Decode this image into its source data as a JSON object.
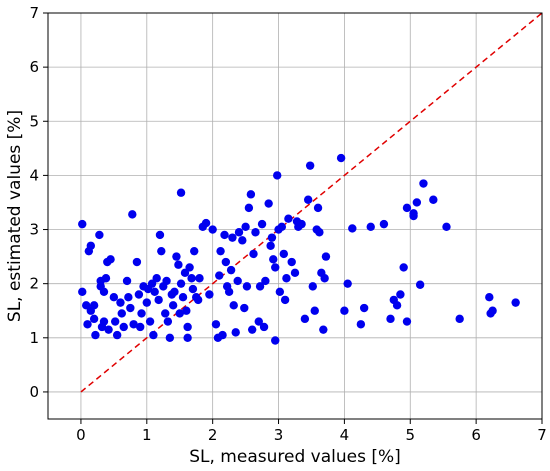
{
  "chart_data": {
    "type": "scatter",
    "title": "",
    "xlabel": "SL, measured values [%]",
    "ylabel": "SL, estimated values [%]",
    "xlim": [
      -0.5,
      7
    ],
    "ylim": [
      -0.5,
      7
    ],
    "xticks": [
      0,
      1,
      2,
      3,
      4,
      5,
      6,
      7
    ],
    "yticks": [
      0,
      1,
      2,
      3,
      4,
      5,
      6,
      7
    ],
    "grid": true,
    "reference_line": {
      "from": [
        0,
        0
      ],
      "to": [
        7,
        7
      ],
      "style": "dashed",
      "color": "#e00000"
    },
    "series": [
      {
        "color": "#0000ee",
        "points": [
          [
            0.02,
            3.1
          ],
          [
            0.02,
            1.85
          ],
          [
            0.08,
            1.6
          ],
          [
            0.1,
            1.25
          ],
          [
            0.12,
            2.6
          ],
          [
            0.15,
            2.7
          ],
          [
            0.15,
            1.5
          ],
          [
            0.2,
            1.6
          ],
          [
            0.2,
            1.35
          ],
          [
            0.22,
            1.05
          ],
          [
            0.28,
            2.9
          ],
          [
            0.3,
            1.95
          ],
          [
            0.3,
            2.05
          ],
          [
            0.32,
            1.2
          ],
          [
            0.35,
            1.85
          ],
          [
            0.35,
            1.3
          ],
          [
            0.38,
            2.1
          ],
          [
            0.4,
            2.4
          ],
          [
            0.42,
            1.15
          ],
          [
            0.45,
            2.45
          ],
          [
            0.5,
            1.75
          ],
          [
            0.52,
            1.3
          ],
          [
            0.55,
            1.05
          ],
          [
            0.6,
            1.65
          ],
          [
            0.62,
            1.45
          ],
          [
            0.65,
            1.2
          ],
          [
            0.7,
            2.05
          ],
          [
            0.72,
            1.75
          ],
          [
            0.75,
            1.55
          ],
          [
            0.78,
            3.28
          ],
          [
            0.8,
            1.25
          ],
          [
            0.85,
            2.4
          ],
          [
            0.88,
            1.8
          ],
          [
            0.9,
            1.2
          ],
          [
            0.92,
            1.45
          ],
          [
            0.95,
            1.95
          ],
          [
            1.0,
            1.65
          ],
          [
            1.02,
            1.9
          ],
          [
            1.05,
            1.3
          ],
          [
            1.08,
            2.0
          ],
          [
            1.1,
            1.05
          ],
          [
            1.12,
            1.85
          ],
          [
            1.15,
            2.1
          ],
          [
            1.18,
            1.7
          ],
          [
            1.2,
            2.9
          ],
          [
            1.22,
            2.6
          ],
          [
            1.25,
            1.95
          ],
          [
            1.28,
            1.45
          ],
          [
            1.3,
            2.05
          ],
          [
            1.32,
            1.3
          ],
          [
            1.35,
            1.0
          ],
          [
            1.38,
            1.8
          ],
          [
            1.4,
            1.6
          ],
          [
            1.42,
            1.85
          ],
          [
            1.45,
            2.5
          ],
          [
            1.48,
            2.35
          ],
          [
            1.5,
            1.45
          ],
          [
            1.52,
            2.0
          ],
          [
            1.55,
            1.75
          ],
          [
            1.58,
            2.2
          ],
          [
            1.6,
            1.5
          ],
          [
            1.62,
            1.0
          ],
          [
            1.65,
            2.3
          ],
          [
            1.68,
            2.1
          ],
          [
            1.7,
            1.9
          ],
          [
            1.72,
            2.6
          ],
          [
            1.75,
            1.75
          ],
          [
            1.78,
            1.7
          ],
          [
            1.8,
            2.1
          ],
          [
            1.52,
            3.68
          ],
          [
            1.62,
            1.2
          ],
          [
            1.85,
            3.05
          ],
          [
            1.9,
            3.12
          ],
          [
            1.95,
            1.8
          ],
          [
            2.0,
            3.0
          ],
          [
            2.05,
            1.25
          ],
          [
            2.08,
            1.0
          ],
          [
            2.1,
            2.15
          ],
          [
            2.12,
            2.6
          ],
          [
            2.15,
            1.05
          ],
          [
            2.18,
            2.9
          ],
          [
            2.2,
            2.4
          ],
          [
            2.22,
            1.95
          ],
          [
            2.25,
            1.85
          ],
          [
            2.28,
            2.25
          ],
          [
            2.3,
            2.85
          ],
          [
            2.32,
            1.6
          ],
          [
            2.35,
            1.1
          ],
          [
            2.38,
            2.05
          ],
          [
            2.4,
            2.95
          ],
          [
            2.45,
            2.8
          ],
          [
            2.48,
            1.55
          ],
          [
            2.5,
            3.05
          ],
          [
            2.52,
            1.95
          ],
          [
            2.55,
            3.4
          ],
          [
            2.58,
            3.65
          ],
          [
            2.6,
            1.15
          ],
          [
            2.62,
            2.55
          ],
          [
            2.65,
            2.95
          ],
          [
            2.7,
            1.3
          ],
          [
            2.72,
            1.95
          ],
          [
            2.75,
            3.1
          ],
          [
            2.78,
            1.2
          ],
          [
            2.8,
            2.05
          ],
          [
            2.85,
            3.48
          ],
          [
            2.88,
            2.7
          ],
          [
            2.9,
            2.85
          ],
          [
            2.92,
            2.45
          ],
          [
            2.95,
            2.3
          ],
          [
            2.95,
            0.95
          ],
          [
            2.98,
            4.0
          ],
          [
            3.0,
            3.0
          ],
          [
            3.02,
            1.85
          ],
          [
            3.05,
            3.05
          ],
          [
            3.08,
            2.55
          ],
          [
            3.1,
            1.7
          ],
          [
            3.12,
            2.1
          ],
          [
            3.15,
            3.2
          ],
          [
            3.2,
            2.4
          ],
          [
            3.25,
            2.2
          ],
          [
            3.28,
            3.15
          ],
          [
            3.3,
            3.05
          ],
          [
            3.35,
            3.1
          ],
          [
            3.4,
            1.35
          ],
          [
            3.45,
            3.55
          ],
          [
            3.48,
            4.18
          ],
          [
            3.52,
            1.95
          ],
          [
            3.55,
            1.5
          ],
          [
            3.58,
            3.0
          ],
          [
            3.6,
            3.4
          ],
          [
            3.62,
            2.95
          ],
          [
            3.65,
            2.2
          ],
          [
            3.68,
            1.15
          ],
          [
            3.7,
            2.1
          ],
          [
            3.72,
            2.5
          ],
          [
            3.95,
            4.32
          ],
          [
            4.0,
            1.5
          ],
          [
            4.05,
            2.0
          ],
          [
            4.12,
            3.02
          ],
          [
            4.25,
            1.25
          ],
          [
            4.3,
            1.55
          ],
          [
            4.4,
            3.05
          ],
          [
            4.6,
            3.1
          ],
          [
            4.7,
            1.35
          ],
          [
            4.75,
            1.7
          ],
          [
            4.8,
            1.6
          ],
          [
            4.85,
            1.8
          ],
          [
            4.9,
            2.3
          ],
          [
            4.95,
            1.3
          ],
          [
            4.95,
            3.4
          ],
          [
            5.05,
            3.3
          ],
          [
            5.05,
            3.25
          ],
          [
            5.1,
            3.5
          ],
          [
            5.15,
            1.98
          ],
          [
            5.2,
            3.85
          ],
          [
            5.35,
            3.55
          ],
          [
            5.55,
            3.05
          ],
          [
            5.75,
            1.35
          ],
          [
            6.2,
            1.75
          ],
          [
            6.22,
            1.45
          ],
          [
            6.25,
            1.5
          ],
          [
            6.6,
            1.65
          ]
        ]
      }
    ]
  }
}
